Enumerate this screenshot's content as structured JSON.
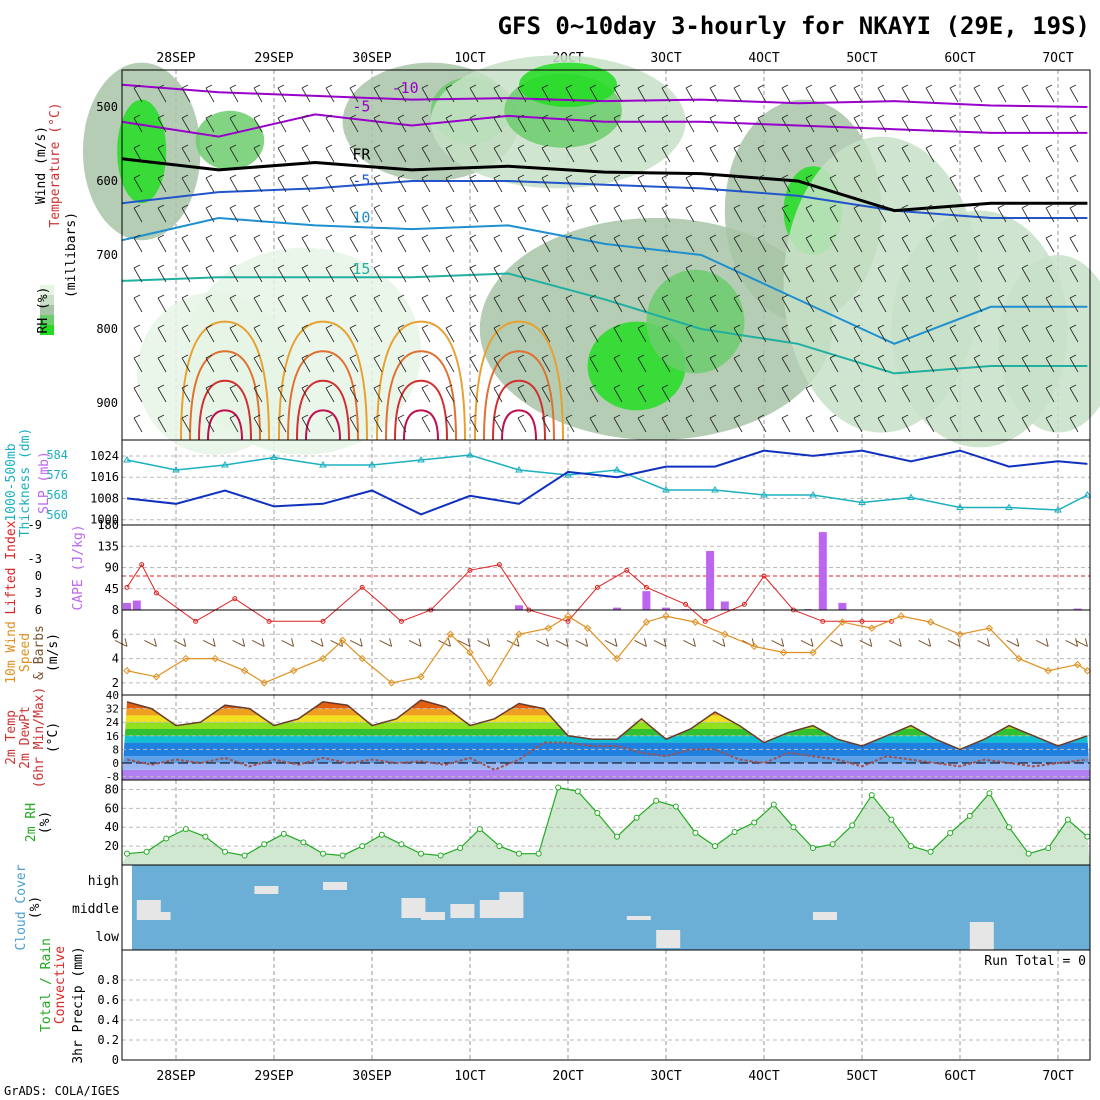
{
  "title": "GFS 0~10day 3-hourly for NKAYI (29E, 19S)",
  "footer": "GrADS: COLA/IGES",
  "chart_data": {
    "type": "meteogram",
    "time_labels": [
      "28SEP",
      "29SEP",
      "30SEP",
      "1OCT",
      "2OCT",
      "3OCT",
      "4OCT",
      "5OCT",
      "6OCT",
      "7OCT"
    ],
    "time_labels_top": [
      "28SEP",
      "29SEP",
      "30SEP",
      "1OCT",
      "2OCT",
      "3OCT",
      "4OCT",
      "5OCT",
      "6OCT",
      "7OCT"
    ],
    "time_range": [
      -0.55,
      9.3
    ],
    "panels": {
      "upper_air": {
        "ylabels": [
          "Wind (m/s)",
          "Temperature (°C)",
          "(millibars)",
          "RH (%)"
        ],
        "yrange": [
          450,
          950
        ],
        "yticks": [
          500,
          600,
          700,
          800,
          900
        ],
        "temperature_contours": [
          {
            "label": "-10",
            "color": "#9900cc",
            "pressure": [
              470,
              480,
              485,
              490,
              488,
              492,
              490,
              495,
              492,
              498,
              500
            ]
          },
          {
            "label": "-5",
            "color": "#9900cc",
            "pressure": [
              520,
              540,
              510,
              525,
              512,
              520,
              520,
              525,
              530,
              535,
              535
            ]
          },
          {
            "label": "-5",
            "color": "#2255cc",
            "pressure": [
              630,
              615,
              610,
              600,
              600,
              605,
              610,
              620,
              640,
              650,
              650
            ]
          },
          {
            "label": "FR",
            "color": "#000000",
            "pressure": [
              570,
              585,
              575,
              585,
              580,
              588,
              590,
              600,
              640,
              630,
              630
            ]
          },
          {
            "label": "10",
            "color": "#1e90d0",
            "pressure": [
              680,
              650,
              660,
              665,
              660,
              685,
              700,
              760,
              820,
              770,
              770
            ]
          },
          {
            "label": "15",
            "color": "#20b0a0",
            "pressure": [
              735,
              730,
              730,
              730,
              725,
              760,
              800,
              820,
              860,
              850,
              850
            ]
          }
        ],
        "rh_legend_levels": [
          "#e6f5e6",
          "#c7e0c7",
          "#a7c4a7",
          "#6ccd6c",
          "#22dd22"
        ]
      },
      "thickness_slp": {
        "ylabels": [
          "1000-500mb",
          "Thickness (dm)",
          "SLP (mb)"
        ],
        "thickness_range": [
          556,
          590
        ],
        "thickness_ticks": [
          560,
          568,
          576,
          584
        ],
        "slp_range": [
          998,
          1030
        ],
        "slp_ticks": [
          1000,
          1008,
          1016,
          1024
        ],
        "x": [
          -0.5,
          0,
          0.5,
          1,
          1.5,
          2,
          2.5,
          3,
          3.5,
          4,
          4.5,
          5,
          5.5,
          6,
          6.5,
          7,
          7.5,
          8,
          8.5,
          9,
          9.3
        ],
        "thickness": [
          582,
          578,
          580,
          583,
          580,
          580,
          582,
          584,
          578,
          576,
          578,
          570,
          570,
          568,
          568,
          565,
          567,
          563,
          563,
          562,
          568
        ],
        "slp": [
          1008,
          1006,
          1011,
          1005,
          1006,
          1011,
          1002,
          1009,
          1006,
          1018,
          1016,
          1020,
          1020,
          1026,
          1024,
          1026,
          1022,
          1026,
          1020,
          1022,
          1021
        ],
        "thickness_color": "#1ab0c0",
        "slp_color": "#1030c0"
      },
      "cape_li": {
        "ylabels": [
          "Lifted Index",
          "CAPE (J/kg)"
        ],
        "li_ticks": [
          "-9",
          "-3",
          "0",
          "3",
          "6"
        ],
        "cape_range": [
          0,
          180
        ],
        "cape_ticks": [
          45,
          90,
          135,
          180
        ],
        "li_x": [
          -0.5,
          -0.35,
          -0.2,
          0.2,
          0.6,
          0.95,
          1.5,
          1.9,
          2.3,
          2.6,
          3.0,
          3.3,
          3.6,
          4.0,
          4.3,
          4.6,
          4.8,
          5.2,
          5.4,
          5.8,
          6.0,
          6.3,
          6.6,
          7.0,
          7.3
        ],
        "li": [
          2,
          -2,
          3,
          8,
          4,
          8,
          8,
          2,
          8,
          6,
          -1,
          -2,
          6,
          8,
          2,
          -1,
          2,
          5,
          8,
          5,
          0,
          6,
          8,
          8,
          8
        ],
        "cape_x": [
          -0.5,
          -0.4,
          2.6,
          3.5,
          4.5,
          4.8,
          5.0,
          5.2,
          5.45,
          5.6,
          6.45,
          6.6,
          6.8,
          9.2
        ],
        "cape": [
          15,
          20,
          2,
          10,
          5,
          40,
          5,
          2,
          125,
          18,
          2,
          165,
          15,
          3
        ],
        "li_color": "#dd2222",
        "cape_color": "#bb66ee"
      },
      "wind": {
        "ylabels": [
          "10m Wind",
          "Speed",
          "& Barbs",
          "(m/s)"
        ],
        "yrange": [
          1,
          8
        ],
        "yticks": [
          2,
          4,
          6,
          8
        ],
        "x": [
          -0.5,
          -0.2,
          0.1,
          0.4,
          0.7,
          0.9,
          1.2,
          1.5,
          1.7,
          1.9,
          2.2,
          2.5,
          2.8,
          3.0,
          3.2,
          3.5,
          3.8,
          4.0,
          4.2,
          4.5,
          4.8,
          5.0,
          5.3,
          5.6,
          5.9,
          6.2,
          6.5,
          6.8,
          7.1,
          7.4,
          7.7,
          8.0,
          8.3,
          8.6,
          8.9,
          9.2,
          9.3
        ],
        "speed": [
          3,
          2.5,
          4,
          4,
          3,
          2,
          3,
          4,
          5.5,
          4,
          2,
          2.5,
          6,
          4.5,
          2,
          6,
          6.5,
          7.5,
          6.5,
          4,
          7,
          7.5,
          7,
          6,
          5,
          4.5,
          4.5,
          7,
          6.5,
          7.5,
          7,
          6,
          6.5,
          4,
          3,
          3.5,
          3
        ],
        "speed_color": "#e09020",
        "barb_color": "#7a5530"
      },
      "temperature": {
        "ylabels": [
          "2m Temp",
          "2m DewPt",
          "(6hr Min/Max)",
          "(°C)"
        ],
        "yrange": [
          -10,
          40
        ],
        "yticks": [
          -8,
          0,
          8,
          16,
          24,
          32,
          40
        ],
        "x": [
          -0.5,
          -0.25,
          0,
          0.25,
          0.5,
          0.75,
          1,
          1.25,
          1.5,
          1.75,
          2,
          2.25,
          2.5,
          2.75,
          3,
          3.25,
          3.5,
          3.75,
          4,
          4.25,
          4.5,
          4.75,
          5,
          5.25,
          5.5,
          5.75,
          6,
          6.25,
          6.5,
          6.75,
          7,
          7.25,
          7.5,
          7.75,
          8,
          8.25,
          8.5,
          8.75,
          9,
          9.3
        ],
        "temp": [
          36,
          32,
          22,
          24,
          34,
          32,
          22,
          26,
          36,
          34,
          22,
          26,
          37,
          33,
          22,
          26,
          35,
          32,
          16,
          14,
          14,
          26,
          14,
          20,
          30,
          22,
          12,
          18,
          22,
          14,
          10,
          16,
          22,
          14,
          8,
          14,
          22,
          16,
          10,
          16
        ],
        "dewpt": [
          2,
          -1,
          2,
          0,
          3,
          -2,
          2,
          -1,
          3,
          0,
          2,
          0,
          1,
          -1,
          3,
          -4,
          2,
          12,
          12,
          10,
          10,
          6,
          4,
          8,
          8,
          2,
          0,
          6,
          4,
          2,
          -2,
          4,
          2,
          0,
          -2,
          2,
          0,
          -2,
          0,
          2
        ],
        "temp_color": "#6a3a2a",
        "dewpt_color": "#a05050"
      },
      "rh2m": {
        "ylabels": [
          "2m RH",
          "(%)"
        ],
        "yrange": [
          0,
          90
        ],
        "yticks": [
          20,
          40,
          60,
          80
        ],
        "x": [
          -0.5,
          -0.3,
          -0.1,
          0.1,
          0.3,
          0.5,
          0.7,
          0.9,
          1.1,
          1.3,
          1.5,
          1.7,
          1.9,
          2.1,
          2.3,
          2.5,
          2.7,
          2.9,
          3.1,
          3.3,
          3.5,
          3.7,
          3.9,
          4.1,
          4.3,
          4.5,
          4.7,
          4.9,
          5.1,
          5.3,
          5.5,
          5.7,
          5.9,
          6.1,
          6.3,
          6.5,
          6.7,
          6.9,
          7.1,
          7.3,
          7.5,
          7.7,
          7.9,
          8.1,
          8.3,
          8.5,
          8.7,
          8.9,
          9.1,
          9.3
        ],
        "rh": [
          12,
          14,
          28,
          38,
          30,
          14,
          10,
          22,
          33,
          24,
          12,
          10,
          20,
          32,
          22,
          12,
          10,
          18,
          38,
          20,
          12,
          12,
          82,
          78,
          55,
          30,
          50,
          68,
          62,
          34,
          20,
          35,
          45,
          64,
          40,
          18,
          22,
          42,
          74,
          48,
          20,
          14,
          34,
          52,
          76,
          40,
          12,
          18,
          48,
          30
        ],
        "color": "#22aa22"
      },
      "cloud": {
        "ylabels": [
          "Cloud Cover",
          "(%)"
        ],
        "level_labels": [
          "high",
          "middle",
          "low"
        ],
        "background": "#6baed6",
        "cell_color": "#e6e6e6"
      },
      "precip": {
        "ylabels": [
          "Total / Rain",
          "Convective",
          "3hr Precip (mm)"
        ],
        "yrange": [
          0,
          1
        ],
        "yticks": [
          0,
          0.2,
          0.4,
          0.6,
          0.8
        ],
        "run_total": "Run Total = 0"
      }
    }
  }
}
